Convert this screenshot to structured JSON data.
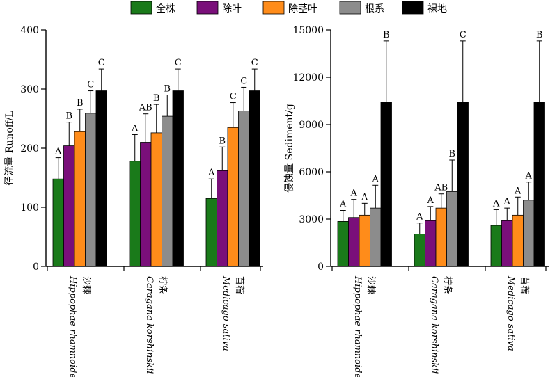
{
  "chart_data": [
    {
      "type": "bar",
      "ylabel": "径流量 Runoff/L",
      "ylim": [
        0,
        400
      ],
      "yticks": [
        0,
        100,
        200,
        300,
        400
      ],
      "categories": [
        {
          "cn": "沙棘",
          "latin": "Hippophae rhamnoides"
        },
        {
          "cn": "柠条",
          "latin": "Caragana korshinskii"
        },
        {
          "cn": "苜蓿",
          "latin": "Medicago sativa"
        }
      ],
      "series": [
        {
          "name": "全株",
          "color": "#1a7a1a",
          "values": [
            148,
            178,
            115
          ],
          "errors": [
            36,
            45,
            33
          ],
          "letters": [
            "A",
            "A",
            "A"
          ]
        },
        {
          "name": "除叶",
          "color": "#7a0f7a",
          "values": [
            204,
            210,
            162
          ],
          "errors": [
            40,
            48,
            40
          ],
          "letters": [
            "B",
            "AB",
            "B"
          ]
        },
        {
          "name": "除茎叶",
          "color": "#ff8c1a",
          "values": [
            228,
            226,
            235
          ],
          "errors": [
            38,
            48,
            42
          ],
          "letters": [
            "B",
            "B",
            "C"
          ]
        },
        {
          "name": "根系",
          "color": "#8c8c8c",
          "values": [
            259,
            254,
            263
          ],
          "errors": [
            38,
            36,
            40
          ],
          "letters": [
            "C",
            "B",
            "C"
          ]
        },
        {
          "name": "裸地",
          "color": "#000000",
          "values": [
            297,
            297,
            297
          ],
          "errors": [
            37,
            37,
            37
          ],
          "letters": [
            "C",
            "C",
            "C"
          ]
        }
      ]
    },
    {
      "type": "bar",
      "ylabel": "侵蚀量 Sediment/g",
      "ylim": [
        0,
        15000
      ],
      "yticks": [
        0,
        3000,
        6000,
        9000,
        12000,
        15000
      ],
      "categories": [
        {
          "cn": "沙棘",
          "latin": "Hippophae rhamnoides"
        },
        {
          "cn": "柠条",
          "latin": "Caragana korshinskii"
        },
        {
          "cn": "苜蓿",
          "latin": "Medicago sativa"
        }
      ],
      "series": [
        {
          "name": "全株",
          "color": "#1a7a1a",
          "values": [
            2850,
            2050,
            2600
          ],
          "errors": [
            700,
            700,
            1000
          ],
          "letters": [
            "A",
            "A",
            "A"
          ]
        },
        {
          "name": "除叶",
          "color": "#7a0f7a",
          "values": [
            3100,
            2900,
            2900
          ],
          "errors": [
            1150,
            900,
            800
          ],
          "letters": [
            "A",
            "A",
            "A"
          ]
        },
        {
          "name": "除茎叶",
          "color": "#ff8c1a",
          "values": [
            3250,
            3700,
            3250
          ],
          "errors": [
            750,
            900,
            1150
          ],
          "letters": [
            "A",
            "AB",
            "A"
          ]
        },
        {
          "name": "根系",
          "color": "#8c8c8c",
          "values": [
            3700,
            4750,
            4200
          ],
          "errors": [
            1450,
            2000,
            1150
          ],
          "letters": [
            "A",
            "B",
            "A"
          ]
        },
        {
          "name": "裸地",
          "color": "#000000",
          "values": [
            10400,
            10400,
            10400
          ],
          "errors": [
            3900,
            3900,
            3900
          ],
          "letters": [
            "B",
            "C",
            "B"
          ]
        }
      ]
    }
  ]
}
